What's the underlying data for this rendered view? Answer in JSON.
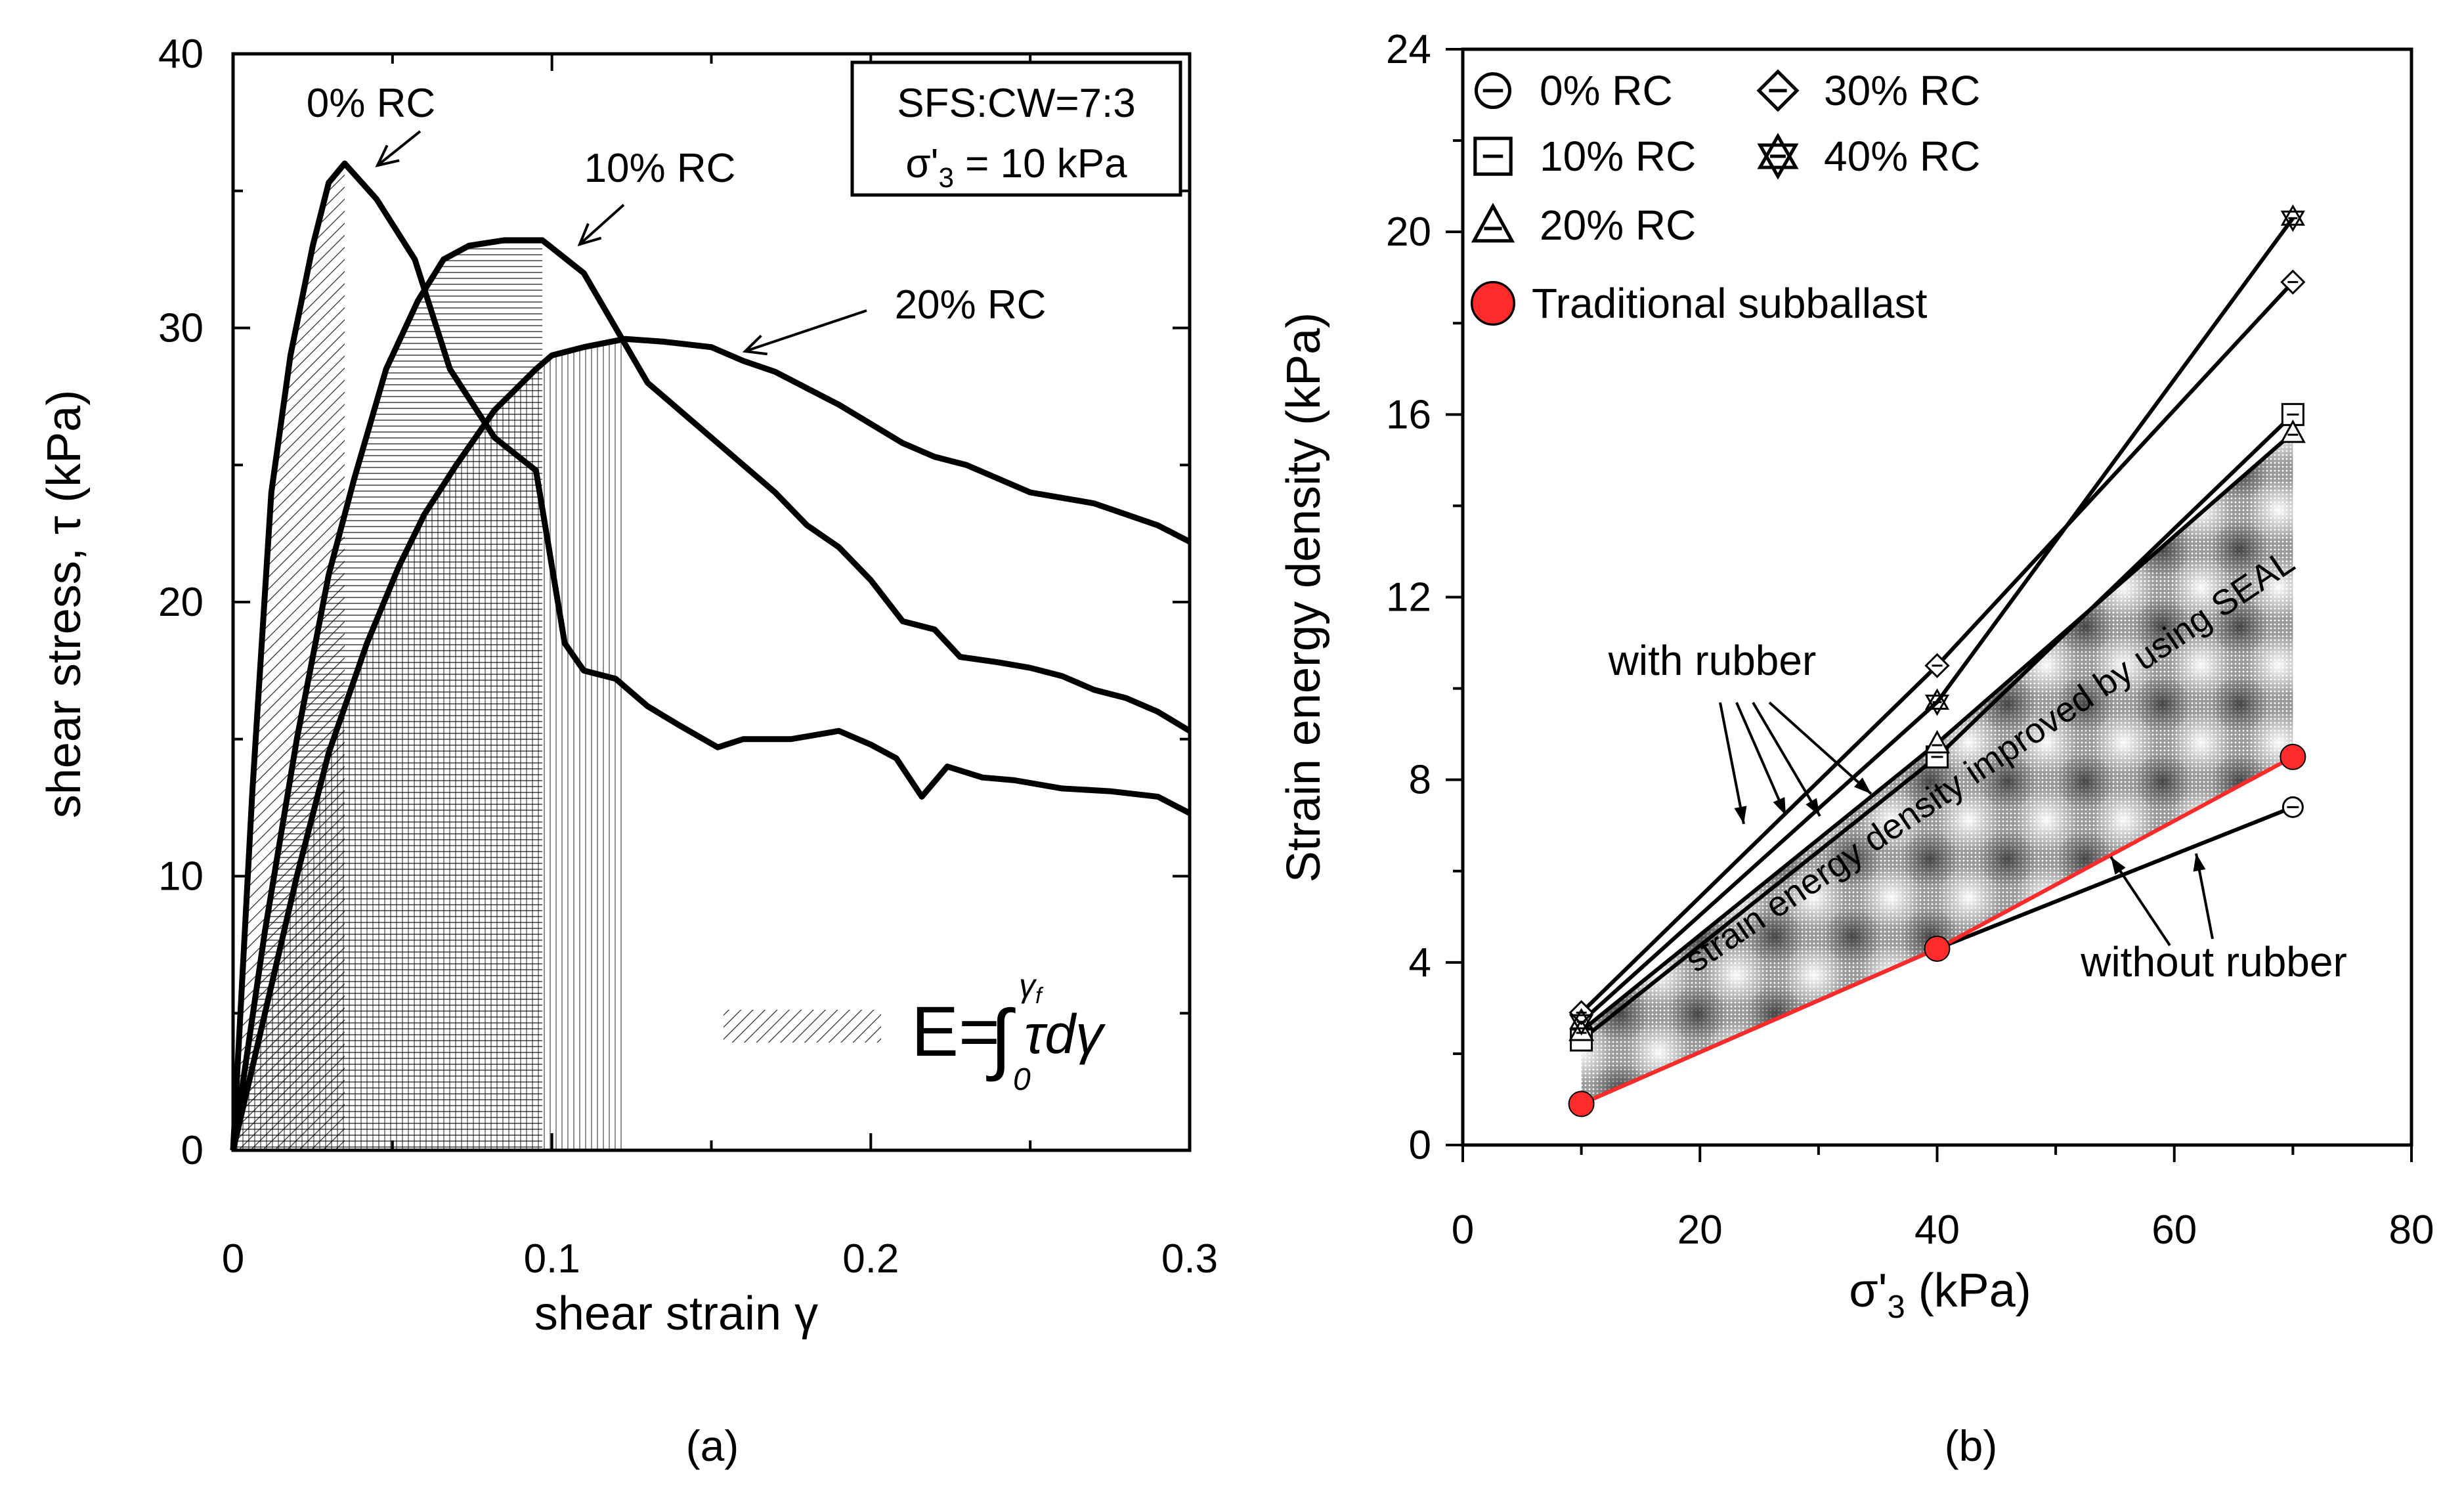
{
  "chart_data": [
    {
      "type": "line",
      "panel_label": "(a)",
      "xlabel": "shear strain γ",
      "ylabel": "shear stress, τ (kPa)",
      "xlim": [
        0,
        0.3
      ],
      "ylim": [
        0,
        40
      ],
      "xticks": [
        0,
        0.1,
        0.2,
        0.3
      ],
      "yticks": [
        0,
        10,
        20,
        30,
        40
      ],
      "xtick_labels": [
        "0",
        "0.1",
        "0.2",
        "0.3"
      ],
      "ytick_labels": [
        "0",
        "10",
        "20",
        "30",
        "40"
      ],
      "info_box": [
        "SFS:CW=7:3",
        "σ'",
        "3",
        " = 10 kPa"
      ],
      "equation": {
        "lhs": "E=",
        "integral": "∫",
        "lower": "0",
        "upper": "γ",
        "upper_sub": "f",
        "integrand": "τdγ"
      },
      "series": [
        {
          "name": "0% RC",
          "label": "0% RC",
          "peak_strain": 0.035,
          "x": [
            0,
            0.006,
            0.012,
            0.018,
            0.025,
            0.03,
            0.035,
            0.045,
            0.057,
            0.068,
            0.082,
            0.095,
            0.104,
            0.11,
            0.12,
            0.13,
            0.14,
            0.152,
            0.16,
            0.175,
            0.19,
            0.2,
            0.208,
            0.216,
            0.224,
            0.235,
            0.245,
            0.26,
            0.275,
            0.29,
            0.3
          ],
          "y": [
            0,
            13,
            24,
            29,
            33,
            35.3,
            36,
            34.7,
            32.5,
            28.5,
            26,
            24.8,
            18.5,
            17.5,
            17.2,
            16.2,
            15.5,
            14.7,
            15,
            15,
            15.3,
            14.8,
            14.3,
            12.9,
            14,
            13.6,
            13.5,
            13.2,
            13.1,
            12.9,
            12.3
          ]
        },
        {
          "name": "10% RC",
          "label": "10% RC",
          "peak_strain": 0.097,
          "x": [
            0,
            0.01,
            0.02,
            0.03,
            0.038,
            0.048,
            0.058,
            0.066,
            0.074,
            0.085,
            0.097,
            0.11,
            0.12,
            0.13,
            0.15,
            0.17,
            0.18,
            0.19,
            0.2,
            0.21,
            0.22,
            0.228,
            0.24,
            0.25,
            0.26,
            0.27,
            0.28,
            0.29,
            0.3
          ],
          "y": [
            0,
            8,
            15,
            21,
            24.5,
            28.5,
            31,
            32.5,
            33,
            33.2,
            33.2,
            32,
            30,
            28,
            26,
            24,
            22.8,
            22,
            20.8,
            19.3,
            19,
            18,
            17.8,
            17.6,
            17.3,
            16.8,
            16.5,
            16,
            15.3
          ]
        },
        {
          "name": "20% RC",
          "label": "20% RC",
          "peak_strain": 0.123,
          "x": [
            0,
            0.01,
            0.02,
            0.03,
            0.042,
            0.052,
            0.06,
            0.07,
            0.082,
            0.095,
            0.1,
            0.11,
            0.123,
            0.135,
            0.15,
            0.16,
            0.17,
            0.18,
            0.19,
            0.2,
            0.21,
            0.22,
            0.23,
            0.24,
            0.25,
            0.26,
            0.27,
            0.28,
            0.29,
            0.3
          ],
          "y": [
            0,
            5,
            10,
            14.5,
            18.5,
            21.3,
            23.2,
            25,
            27,
            28.5,
            29,
            29.3,
            29.6,
            29.5,
            29.3,
            28.8,
            28.4,
            27.8,
            27.2,
            26.5,
            25.8,
            25.3,
            25,
            24.5,
            24,
            23.8,
            23.6,
            23.2,
            22.8,
            22.2
          ]
        }
      ]
    },
    {
      "type": "line",
      "panel_label": "(b)",
      "xlabel": [
        "σ'",
        "3",
        " (kPa)"
      ],
      "ylabel": "Strain energy density (kPa)",
      "xlim": [
        0,
        80
      ],
      "ylim": [
        0,
        24
      ],
      "xticks": [
        0,
        20,
        40,
        60,
        80
      ],
      "yticks": [
        0,
        4,
        8,
        12,
        16,
        20,
        24
      ],
      "xtick_labels": [
        "0",
        "20",
        "40",
        "60",
        "80"
      ],
      "ytick_labels": [
        "0",
        "4",
        "8",
        "12",
        "16",
        "20",
        "24"
      ],
      "x": [
        10,
        40,
        70
      ],
      "series": [
        {
          "name": "0% RC",
          "marker": "circle-dash",
          "values": [
            0.9,
            4.3,
            7.4
          ]
        },
        {
          "name": "10% RC",
          "marker": "square-dash",
          "values": [
            2.3,
            8.5,
            16.0
          ]
        },
        {
          "name": "20% RC",
          "marker": "triangle-dash",
          "values": [
            2.5,
            8.8,
            15.6
          ]
        },
        {
          "name": "30% RC",
          "marker": "diamond-dash",
          "values": [
            2.9,
            10.5,
            18.9
          ]
        },
        {
          "name": "40% RC",
          "marker": "star-dash",
          "values": [
            2.7,
            9.7,
            20.3
          ]
        },
        {
          "name": "Traditional subballast",
          "marker": "filled-circle",
          "color": "#ff2a2a",
          "values": [
            0.9,
            4.3,
            8.5
          ]
        }
      ],
      "shaded_region": {
        "label": "strain energy density improved by using SEAL",
        "upper_series": "20% RC",
        "lower_series": "Traditional subballast"
      },
      "annotations": {
        "with_rubber": "with rubber",
        "without_rubber": "without rubber"
      }
    }
  ]
}
